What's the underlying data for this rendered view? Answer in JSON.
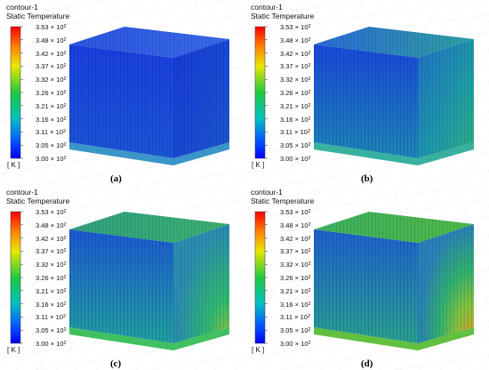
{
  "legend": {
    "title_line1": "contour-1",
    "title_line2": "Static Temperature",
    "unit": "[ K ]",
    "ticks": [
      {
        "mantissa": "3.53",
        "exp": "2"
      },
      {
        "mantissa": "3.48",
        "exp": "2"
      },
      {
        "mantissa": "3.42",
        "exp": "2"
      },
      {
        "mantissa": "3.37",
        "exp": "2"
      },
      {
        "mantissa": "3.32",
        "exp": "2"
      },
      {
        "mantissa": "3.26",
        "exp": "2"
      },
      {
        "mantissa": "3.21",
        "exp": "2"
      },
      {
        "mantissa": "3.16",
        "exp": "2"
      },
      {
        "mantissa": "3.11",
        "exp": "2"
      },
      {
        "mantissa": "3.05",
        "exp": "2"
      },
      {
        "mantissa": "3.00",
        "exp": "2"
      }
    ],
    "times_sign": "×",
    "base": "10",
    "colormap": [
      "#ff0000",
      "#ff8000",
      "#e8e800",
      "#20c840",
      "#00c0c0",
      "#0060ff",
      "#0000ff"
    ]
  },
  "panels": [
    {
      "id": "a",
      "caption": "(a)"
    },
    {
      "id": "b",
      "caption": "(b)"
    },
    {
      "id": "c",
      "caption": "(c)"
    },
    {
      "id": "d",
      "caption": "(d)"
    }
  ]
}
